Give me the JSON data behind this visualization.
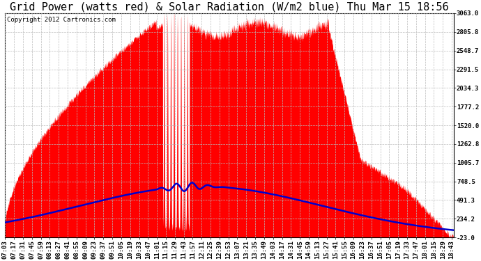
{
  "title": "Grid Power (watts red) & Solar Radiation (W/m2 blue) Thu Mar 15 18:56",
  "copyright_text": "Copyright 2012 Cartronics.com",
  "y_min": -23.0,
  "y_max": 3063.0,
  "y_ticks": [
    3063.0,
    2805.8,
    2548.7,
    2291.5,
    2034.3,
    1777.2,
    1520.0,
    1262.8,
    1005.7,
    748.5,
    491.3,
    234.2,
    -23.0
  ],
  "x_start_hour": 7,
  "x_start_min": 3,
  "x_end_hour": 18,
  "x_end_min": 46,
  "x_tick_interval_min": 14,
  "fill_color": "#ff0000",
  "line_color": "#0000cc",
  "background_color": "#ffffff",
  "grid_color": "#bbbbbb",
  "title_fontsize": 11,
  "tick_fontsize": 6.5,
  "copyright_fontsize": 6.5
}
